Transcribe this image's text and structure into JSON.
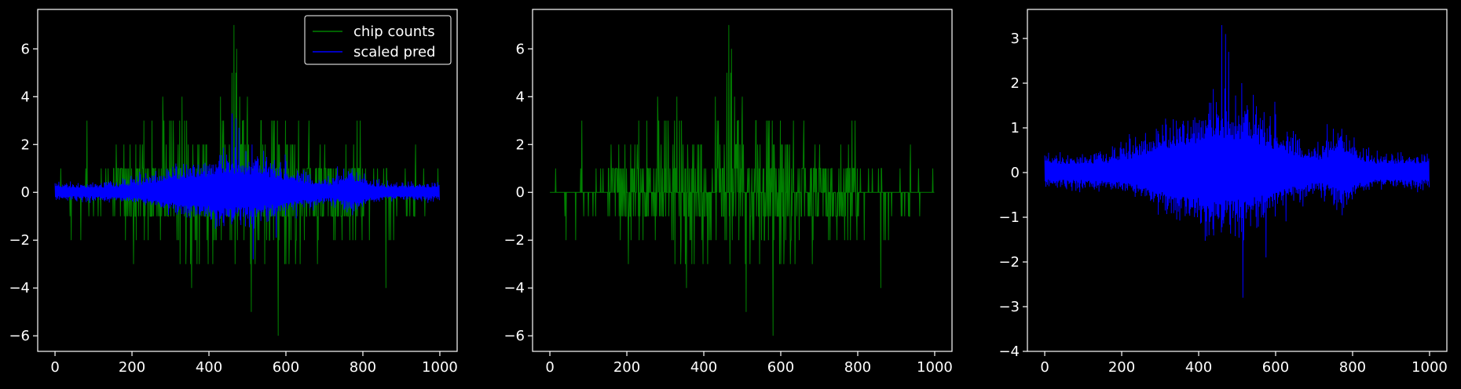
{
  "theme": {
    "background": "#000000",
    "axes_color": "#ffffff",
    "counts_color": "#008000",
    "pred_color": "#0000ff"
  },
  "chart_data": [
    {
      "type": "line",
      "title": "",
      "xlabel": "",
      "ylabel": "",
      "xlim": [
        -45,
        1045
      ],
      "ylim": [
        -6.65,
        7.65
      ],
      "x_ticks": [
        0,
        200,
        400,
        600,
        800,
        1000
      ],
      "x_tick_labels": [
        "0",
        "200",
        "400",
        "600",
        "800",
        "1000"
      ],
      "y_ticks": [
        -6,
        -4,
        -2,
        0,
        2,
        4,
        6
      ],
      "y_tick_labels": [
        "−6",
        "−4",
        "−2",
        "0",
        "2",
        "4",
        "6"
      ],
      "grid": false,
      "legend": {
        "position": "top-right",
        "entries": [
          {
            "label": "chip counts",
            "color": "#008000"
          },
          {
            "label": "scaled pred",
            "color": "#0000ff"
          }
        ]
      },
      "series": [
        {
          "name": "chip counts",
          "color": "#008000",
          "x_range": [
            0,
            999
          ],
          "points": 1000,
          "values": "integer chip counts per position, mostly 0 or ±1; |count| ≤ 2 outside 150–800; peaks: max 7 at x≈465, 6 at x≈472, 5 at x≈460, 5 at x≈470, 4 near 280, 330, 430, 480, 500; min −6 at x≈580, −5 at x≈510, −4 at x≈355 and x≈860"
        },
        {
          "name": "scaled pred",
          "color": "#0000ff",
          "x_range": [
            0,
            999
          ],
          "points": 1000,
          "values": "two mirrored noisy bands: upper band ≈ +0.1–0.4 at edges rising to ≈ +3 near x≈460 (max 3.3), secondary bump ≈ +1.9 at x≈775; lower band ≈ −0.1–−0.4 at edges falling to ≈ −1.7 near x≈380 and min −3.7 at x≈520"
        }
      ]
    },
    {
      "type": "line",
      "title": "",
      "xlabel": "",
      "ylabel": "",
      "xlim": [
        -45,
        1045
      ],
      "ylim": [
        -6.65,
        7.65
      ],
      "x_ticks": [
        0,
        200,
        400,
        600,
        800,
        1000
      ],
      "x_tick_labels": [
        "0",
        "200",
        "400",
        "600",
        "800",
        "1000"
      ],
      "y_ticks": [
        -6,
        -4,
        -2,
        0,
        2,
        4,
        6
      ],
      "y_tick_labels": [
        "−6",
        "−4",
        "−2",
        "0",
        "2",
        "4",
        "6"
      ],
      "grid": false,
      "series": [
        {
          "color": "#008000",
          "x_range": [
            0,
            999
          ],
          "points": 1000,
          "values": "same integer chip counts as panel 1"
        }
      ]
    },
    {
      "type": "line",
      "title": "",
      "xlabel": "",
      "ylabel": "",
      "xlim": [
        -45,
        1045
      ],
      "ylim": [
        -4.0,
        3.65
      ],
      "x_ticks": [
        0,
        200,
        400,
        600,
        800,
        1000
      ],
      "x_tick_labels": [
        "0",
        "200",
        "400",
        "600",
        "800",
        "1000"
      ],
      "y_ticks": [
        -4,
        -3,
        -2,
        -1,
        0,
        1,
        2,
        3
      ],
      "y_tick_labels": [
        "−4",
        "−3",
        "−2",
        "−1",
        "0",
        "1",
        "2",
        "3"
      ],
      "grid": false,
      "series": [
        {
          "color": "#0000ff",
          "x_range": [
            0,
            999
          ],
          "points": 1000,
          "values": "same scaled prediction bands as panel 1: upper max ≈ 3.3 at x≈460, lower min ≈ −3.7 at x≈520"
        }
      ]
    }
  ]
}
